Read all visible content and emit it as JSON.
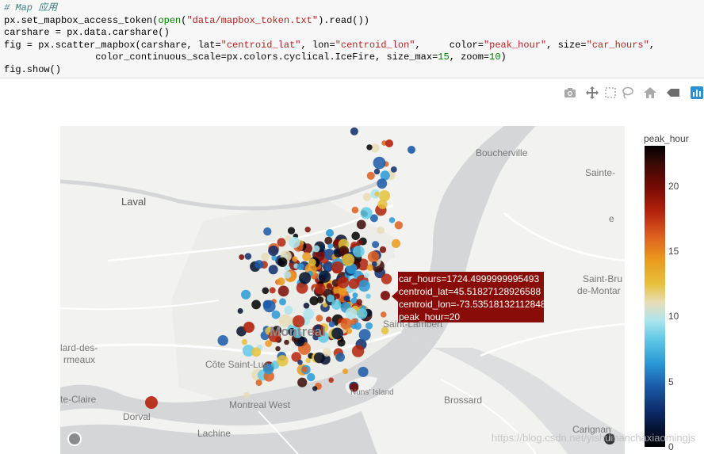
{
  "code": {
    "comment": "# Map 应用",
    "line1": [
      "px.set_mapbox_access_token(",
      "open",
      "(",
      "\"data/mapbox_token.txt\"",
      ").read())"
    ],
    "line2": "carshare = px.data.carshare()",
    "line3": [
      "fig = px.scatter_mapbox(carshare, lat=",
      "\"centroid_lat\"",
      ", lon=",
      "\"centroid_lon\"",
      ",     color=",
      "\"peak_hour\"",
      ", size=",
      "\"car_hours\"",
      ","
    ],
    "line4": [
      "                color_continuous_scale=px.colors.cyclical.IceFire, size_max=",
      "15",
      ", zoom=",
      "10",
      ")"
    ],
    "line5": "fig.show()"
  },
  "modebar": {
    "icons": [
      "camera-icon",
      "pan-icon",
      "box-select-icon",
      "lasso-icon",
      "home-icon",
      "toggle-hover-icon",
      "plotly-logo-icon"
    ],
    "active_color": "#2b8fd6"
  },
  "map": {
    "places": {
      "laval": "Laval",
      "boucherville": "Boucherville",
      "sainte": "Sainte-",
      "montreal": "Montreal",
      "saint_lambert": "Saint-Lambert",
      "saint_bru": "Saint-Bru",
      "de_montar": "de-Montar",
      "cote_saint_luc": "Côte Saint-Luc",
      "lard_des": "lard-des-",
      "rmeaux": "rmeaux",
      "te_claire": "te-Claire",
      "dorval": "Dorval",
      "montreal_west": "Montreal West",
      "nuns_island": "Nuns' Island",
      "brossard": "Brossard",
      "lachine": "Lachine",
      "carignan": "Carignan",
      "e": "e"
    },
    "hover": {
      "line1": "car_hours=1724.4999999995493",
      "line2": "centroid_lat=45.51827128926588",
      "line3": "centroid_lon=-73.53518132112848",
      "line4": "peak_hour=20",
      "bg_color": "#8a0c08"
    },
    "info": "i"
  },
  "colorbar": {
    "title": "peak_hour",
    "ticks": [
      "20",
      "15",
      "10",
      "5",
      "0"
    ],
    "scale": "IceFire"
  },
  "watermark": "https://blog.csdn.net/yishuihanchaxiaomingjs"
}
